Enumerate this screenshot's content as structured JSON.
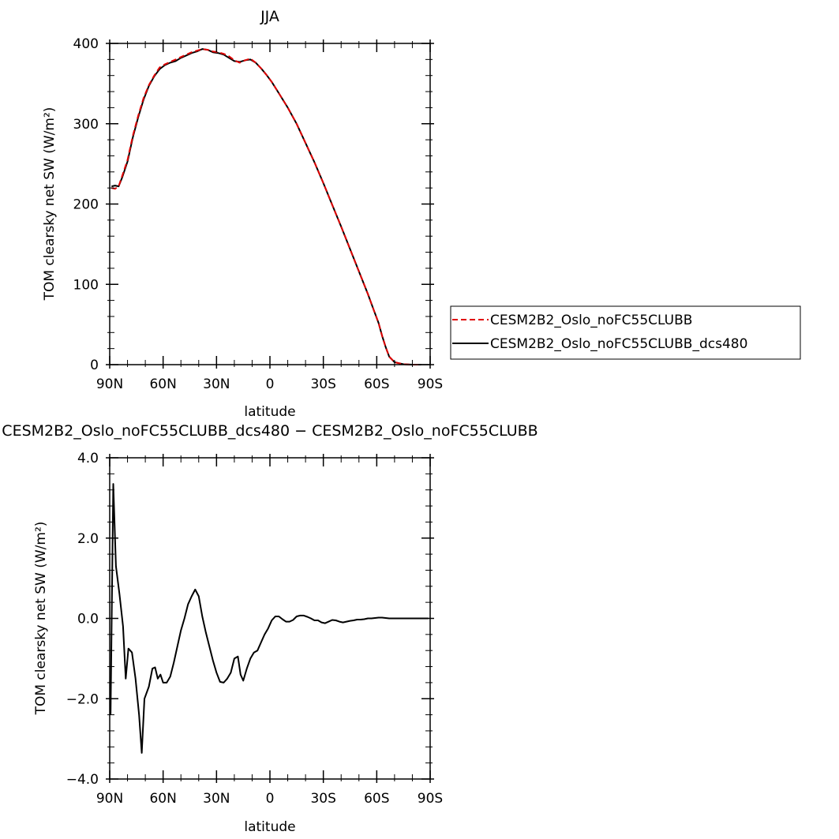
{
  "chart_data": [
    {
      "type": "line",
      "title": "JJA",
      "xlabel": "latitude",
      "ylabel": "TOM clearsky net SW (W/m²)",
      "xlim": [
        90,
        -90
      ],
      "ylim": [
        0,
        400
      ],
      "x_ticks": [
        {
          "value": 90,
          "label": "90N"
        },
        {
          "value": 60,
          "label": "60N"
        },
        {
          "value": 30,
          "label": "30N"
        },
        {
          "value": 0,
          "label": "0"
        },
        {
          "value": -30,
          "label": "30S"
        },
        {
          "value": -60,
          "label": "60S"
        },
        {
          "value": -90,
          "label": "90S"
        }
      ],
      "y_ticks": [
        {
          "value": 0,
          "label": "0"
        },
        {
          "value": 100,
          "label": "100"
        },
        {
          "value": 200,
          "label": "200"
        },
        {
          "value": 300,
          "label": "300"
        },
        {
          "value": 400,
          "label": "400"
        }
      ],
      "legend": {
        "placement": "right"
      },
      "series": [
        {
          "name": "CESM2B2_Oslo_noFC55CLUBB",
          "color": "#e00000",
          "dash": "dashed",
          "x": [
            89,
            87,
            85,
            83,
            80,
            77,
            74,
            71,
            68,
            65,
            62,
            59,
            56,
            53,
            50,
            47,
            44,
            41,
            38,
            35,
            32,
            29,
            26,
            23,
            20,
            17,
            14,
            11,
            8,
            5,
            2,
            -1,
            -5,
            -10,
            -15,
            -20,
            -25,
            -30,
            -35,
            -40,
            -45,
            -50,
            -55,
            -58,
            -61,
            -63,
            -65,
            -67,
            -70,
            -75,
            -80,
            -85
          ],
          "y": [
            220,
            219,
            222,
            235,
            255,
            285,
            310,
            332,
            348,
            360,
            370,
            374,
            377,
            380,
            383,
            386,
            389,
            391,
            393,
            392,
            390,
            389,
            387,
            384,
            379,
            376,
            379,
            381,
            376,
            369,
            361,
            352,
            338,
            320,
            300,
            276,
            252,
            226,
            199,
            172,
            144,
            116,
            88,
            70,
            52,
            36,
            22,
            10,
            3,
            0.5,
            0,
            0
          ]
        },
        {
          "name": "CESM2B2_Oslo_noFC55CLUBB_dcs480",
          "color": "#000000",
          "dash": "solid",
          "x": [
            89,
            87,
            85,
            83,
            80,
            77,
            74,
            71,
            68,
            65,
            62,
            59,
            56,
            53,
            50,
            47,
            44,
            41,
            38,
            35,
            32,
            29,
            26,
            23,
            20,
            17,
            14,
            11,
            8,
            5,
            2,
            -1,
            -5,
            -10,
            -15,
            -20,
            -25,
            -30,
            -35,
            -40,
            -45,
            -50,
            -55,
            -58,
            -61,
            -63,
            -65,
            -67,
            -70,
            -75,
            -80,
            -85
          ],
          "y": [
            222,
            223,
            222,
            233,
            253,
            283,
            308,
            330,
            347,
            359,
            368,
            373,
            376,
            378,
            382,
            385,
            388,
            390,
            393,
            392,
            389,
            388,
            386,
            382,
            378,
            377,
            379,
            380,
            376,
            369,
            361,
            352,
            338,
            320,
            300,
            276,
            252,
            226,
            199,
            172,
            144,
            116,
            88,
            70,
            52,
            36,
            22,
            10,
            3,
            0.5,
            0,
            0
          ]
        }
      ]
    },
    {
      "type": "line",
      "title": "CESM2B2_Oslo_noFC55CLUBB_dcs480 − CESM2B2_Oslo_noFC55CLUBB",
      "xlabel": "latitude",
      "ylabel": "TOM clearsky net SW (W/m²)",
      "xlim": [
        90,
        -90
      ],
      "ylim": [
        -4,
        4
      ],
      "x_ticks": [
        {
          "value": 90,
          "label": "90N"
        },
        {
          "value": 60,
          "label": "60N"
        },
        {
          "value": 30,
          "label": "30N"
        },
        {
          "value": 0,
          "label": "0"
        },
        {
          "value": -30,
          "label": "30S"
        },
        {
          "value": -60,
          "label": "60S"
        },
        {
          "value": -90,
          "label": "90S"
        }
      ],
      "y_ticks": [
        {
          "value": -4,
          "label": "−4.0"
        },
        {
          "value": -2,
          "label": "−2.0"
        },
        {
          "value": 0,
          "label": "0.0"
        },
        {
          "value": 2,
          "label": "2.0"
        },
        {
          "value": 4,
          "label": "4.0"
        }
      ],
      "series": [
        {
          "name": "",
          "color": "#000000",
          "dash": "solid",
          "x": [
            89.5,
            88,
            86.5,
            84.5,
            82.5,
            81,
            79.5,
            77.5,
            75.5,
            73.5,
            72,
            70.5,
            68,
            66,
            64.5,
            63,
            61.5,
            60,
            58,
            56,
            54,
            52,
            50,
            48,
            46,
            44,
            42,
            40,
            38,
            36,
            34,
            32,
            30,
            28,
            26,
            24,
            22,
            20,
            18,
            16.5,
            15,
            13,
            11,
            9,
            7,
            5,
            3,
            1,
            -1,
            -3,
            -5,
            -7,
            -9,
            -11,
            -13,
            -15,
            -17,
            -19,
            -21,
            -23,
            -25,
            -27,
            -29,
            -31,
            -33,
            -35,
            -37,
            -39,
            -41,
            -43,
            -45,
            -47,
            -49,
            -51,
            -53,
            -55,
            -57,
            -59,
            -61,
            -63,
            -65,
            -67,
            -69,
            -71,
            -73,
            -75,
            -77,
            -79,
            -81,
            -83,
            -85,
            -87,
            -89
          ],
          "y": [
            -2.4,
            3.35,
            1.3,
            0.6,
            -0.2,
            -1.5,
            -0.75,
            -0.85,
            -1.5,
            -2.4,
            -3.35,
            -2.0,
            -1.7,
            -1.25,
            -1.22,
            -1.5,
            -1.4,
            -1.6,
            -1.6,
            -1.45,
            -1.1,
            -0.7,
            -0.3,
            0.0,
            0.35,
            0.55,
            0.72,
            0.55,
            0.05,
            -0.35,
            -0.7,
            -1.05,
            -1.35,
            -1.58,
            -1.6,
            -1.5,
            -1.35,
            -1.0,
            -0.95,
            -1.4,
            -1.55,
            -1.25,
            -1.0,
            -0.85,
            -0.8,
            -0.6,
            -0.4,
            -0.25,
            -0.05,
            0.05,
            0.05,
            -0.02,
            -0.08,
            -0.08,
            -0.04,
            0.05,
            0.07,
            0.07,
            0.04,
            0.0,
            -0.05,
            -0.05,
            -0.1,
            -0.12,
            -0.08,
            -0.04,
            -0.05,
            -0.08,
            -0.1,
            -0.08,
            -0.06,
            -0.05,
            -0.03,
            -0.03,
            -0.02,
            0.0,
            0.0,
            0.01,
            0.02,
            0.02,
            0.01,
            0.0,
            0.0,
            0.0,
            0.0,
            0.0,
            0.0,
            0.0,
            0.0,
            0.0,
            0.0,
            0.0,
            0.0
          ]
        }
      ]
    }
  ]
}
